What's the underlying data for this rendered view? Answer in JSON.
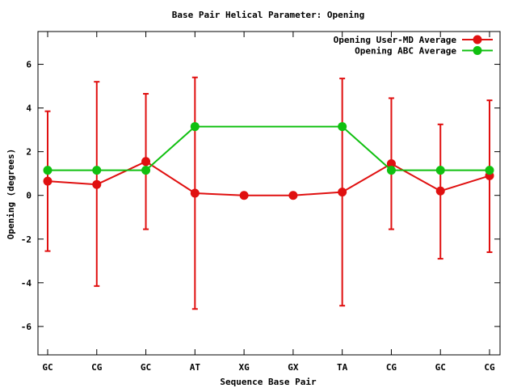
{
  "chart_data": {
    "type": "line",
    "title": "Base Pair Helical Parameter: Opening",
    "xlabel": "Sequence Base Pair",
    "ylabel": "Opening (degrees)",
    "categories": [
      "GC",
      "CG",
      "GC",
      "AT",
      "XG",
      "GX",
      "TA",
      "CG",
      "GC",
      "CG"
    ],
    "ylim": [
      -7.3,
      7.5
    ],
    "yticks": [
      -6,
      -4,
      -2,
      0,
      2,
      4,
      6
    ],
    "ytick_labels": [
      "-6",
      "-4",
      "-2",
      "0",
      "2",
      "4",
      "6"
    ],
    "grid": false,
    "legend_position": "top-right",
    "series": [
      {
        "name": "Opening User-MD Average",
        "color": "#e01010",
        "values": [
          0.65,
          0.5,
          1.55,
          0.1,
          0.0,
          0.0,
          0.15,
          1.45,
          0.2,
          0.9
        ],
        "error_low": [
          -2.55,
          -4.15,
          -1.55,
          -5.2,
          null,
          null,
          -5.05,
          -1.55,
          -2.9,
          -2.6
        ],
        "error_high": [
          3.85,
          5.2,
          4.65,
          5.4,
          null,
          null,
          5.35,
          4.45,
          3.25,
          4.35
        ]
      },
      {
        "name": "Opening ABC Average",
        "color": "#10c010",
        "values": [
          1.15,
          1.15,
          1.15,
          3.15,
          null,
          null,
          3.15,
          1.15,
          1.15,
          1.15
        ]
      }
    ]
  }
}
